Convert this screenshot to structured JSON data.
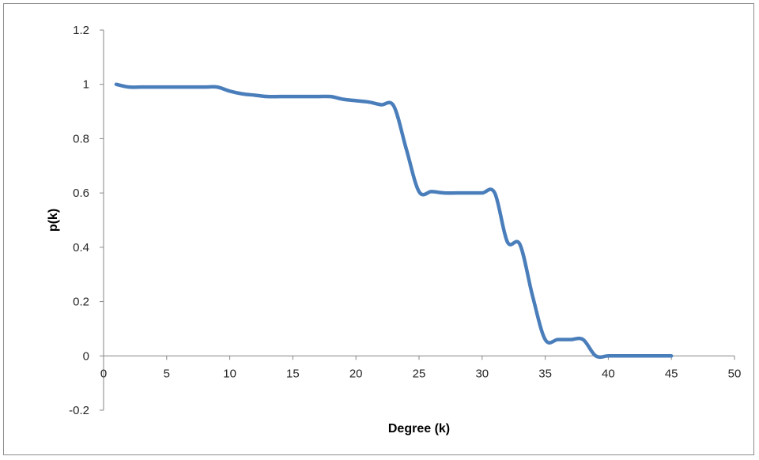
{
  "chart_data": {
    "type": "line",
    "title": "",
    "xlabel": "Degree (k)",
    "ylabel": "p(k)",
    "xlim": [
      0,
      50
    ],
    "ylim": [
      -0.2,
      1.2
    ],
    "x_ticks": [
      0,
      5,
      10,
      15,
      20,
      25,
      30,
      35,
      40,
      45,
      50
    ],
    "y_ticks": [
      -0.2,
      0,
      0.2,
      0.4,
      0.6,
      0.8,
      1,
      1.2
    ],
    "x_tick_labels": [
      "0",
      "5",
      "10",
      "15",
      "20",
      "25",
      "30",
      "35",
      "40",
      "45",
      "50"
    ],
    "y_tick_labels": [
      "-0.2",
      "0",
      "0.2",
      "0.4",
      "0.6",
      "0.8",
      "1",
      "1.2"
    ],
    "grid": false,
    "legend": "none",
    "smooth": true,
    "series": [
      {
        "color": "#4a7ebb",
        "x": [
          1,
          2,
          3,
          4,
          5,
          6,
          7,
          8,
          9,
          10,
          11,
          12,
          13,
          14,
          15,
          16,
          17,
          18,
          19,
          20,
          21,
          22,
          23,
          24,
          25,
          26,
          27,
          28,
          29,
          30,
          31,
          32,
          33,
          34,
          35,
          36,
          37,
          38,
          39,
          40,
          41,
          42,
          43,
          44,
          45
        ],
        "y": [
          1.0,
          0.99,
          0.99,
          0.99,
          0.99,
          0.99,
          0.99,
          0.99,
          0.99,
          0.975,
          0.965,
          0.96,
          0.955,
          0.955,
          0.955,
          0.955,
          0.955,
          0.955,
          0.945,
          0.94,
          0.935,
          0.925,
          0.92,
          0.76,
          0.605,
          0.605,
          0.6,
          0.6,
          0.6,
          0.6,
          0.6,
          0.42,
          0.41,
          0.22,
          0.06,
          0.06,
          0.06,
          0.06,
          0.0,
          0.0,
          0.0,
          0.0,
          0.0,
          0.0,
          0.0
        ]
      }
    ]
  }
}
